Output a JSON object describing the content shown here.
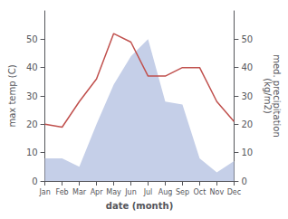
{
  "chart_data": {
    "type": "line",
    "xlabel": "date (month)",
    "ylabel": "max temp (C)",
    "y2label": "med. precipitation\n(kg/m2)",
    "categories": [
      "Jan",
      "Feb",
      "Mar",
      "Apr",
      "May",
      "Jun",
      "Jul",
      "Aug",
      "Sep",
      "Oct",
      "Nov",
      "Dec"
    ],
    "series": [
      {
        "type": "area",
        "axis": "y2",
        "color": "#c5cfe8",
        "values": [
          8,
          8,
          5,
          20,
          34,
          44,
          50,
          28,
          27,
          8,
          3,
          7
        ]
      },
      {
        "type": "line",
        "color": "#c0504d",
        "values": [
          20,
          19,
          28,
          36,
          52,
          49,
          37,
          37,
          40,
          40,
          28,
          21
        ]
      }
    ],
    "ylim": [
      0,
      60
    ],
    "yticks": [
      0,
      10,
      20,
      30,
      40,
      50
    ],
    "y2lim": [
      0,
      60
    ],
    "y2ticks": [
      0,
      10,
      20,
      30,
      40,
      50
    ],
    "grid": false
  }
}
